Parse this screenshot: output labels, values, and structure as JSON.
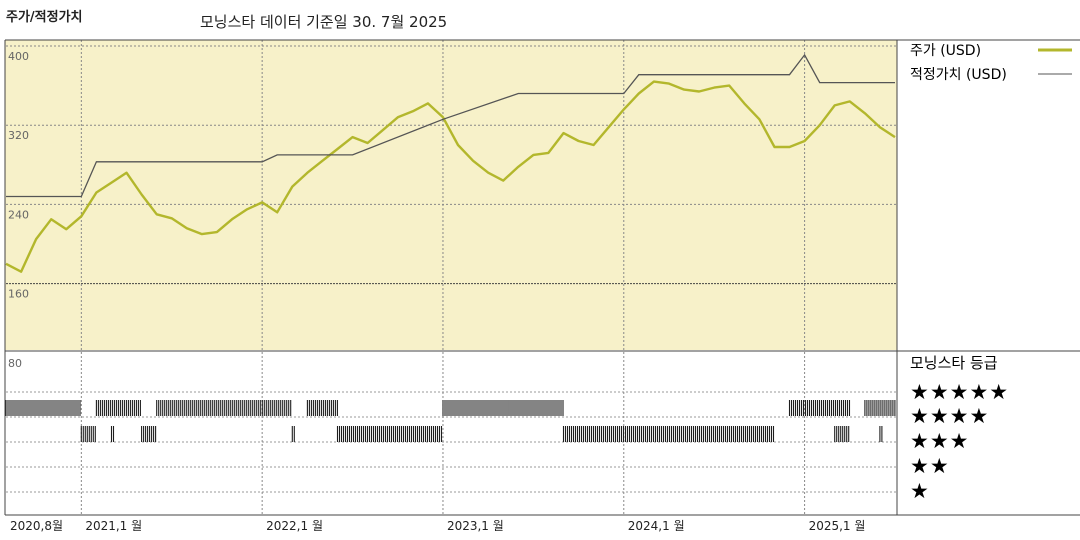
{
  "header": {
    "section_label": "주가/적정가치",
    "subtitle": "모닝스타 데이터 기준일 30. 7월 2025"
  },
  "legend": {
    "price_label": "주가 (USD)",
    "fair_value_label": "적정가치 (USD)"
  },
  "rating": {
    "title": "모닝스타 등급",
    "star_rows": [
      "★★★★★",
      "★★★★",
      "★★★",
      "★★",
      "★"
    ]
  },
  "colors": {
    "price": "#b3b72c",
    "fair_value": "#555555",
    "plot_bg": "#f7f1c9",
    "rating_bars": "#1e1e1e"
  },
  "chart_data": {
    "type": "line",
    "y_ticks": [
      "400",
      "320",
      "240",
      "160"
    ],
    "y_range": [
      80,
      400
    ],
    "lower_tick": "80",
    "x_labels": [
      "2020,8월",
      "2021,1 월",
      "2022,1 월",
      "2023,1 월",
      "2024,1 월",
      "2025,1 월"
    ],
    "x_label_dates": [
      "2020-08",
      "2021-01",
      "2022-01",
      "2023-01",
      "2024-01",
      "2025-01"
    ],
    "x_range": [
      "2020-08",
      "2025-07"
    ],
    "series": [
      {
        "name": "주가 (USD)",
        "x": [
          "2020-08",
          "2020-09",
          "2020-10",
          "2020-11",
          "2020-12",
          "2021-01",
          "2021-02",
          "2021-03",
          "2021-04",
          "2021-05",
          "2021-06",
          "2021-07",
          "2021-08",
          "2021-09",
          "2021-10",
          "2021-11",
          "2021-12",
          "2022-01",
          "2022-02",
          "2022-03",
          "2022-04",
          "2022-05",
          "2022-06",
          "2022-07",
          "2022-08",
          "2022-09",
          "2022-10",
          "2022-11",
          "2022-12",
          "2023-01",
          "2023-02",
          "2023-03",
          "2023-04",
          "2023-05",
          "2023-06",
          "2023-07",
          "2023-08",
          "2023-09",
          "2023-10",
          "2023-11",
          "2023-12",
          "2024-01",
          "2024-02",
          "2024-03",
          "2024-04",
          "2024-05",
          "2024-06",
          "2024-07",
          "2024-08",
          "2024-09",
          "2024-10",
          "2024-11",
          "2024-12",
          "2025-01",
          "2025-02",
          "2025-03",
          "2025-04",
          "2025-05",
          "2025-06",
          "2025-07"
        ],
        "y": [
          180,
          172,
          205,
          225,
          215,
          228,
          252,
          262,
          272,
          250,
          230,
          226,
          216,
          210,
          212,
          225,
          235,
          242,
          232,
          258,
          272,
          284,
          296,
          308,
          302,
          315,
          328,
          334,
          342,
          328,
          300,
          284,
          272,
          264,
          278,
          290,
          292,
          312,
          304,
          300,
          318,
          336,
          352,
          364,
          362,
          356,
          354,
          358,
          360,
          342,
          326,
          298,
          298,
          304,
          320,
          340,
          344,
          332,
          318,
          308
        ]
      },
      {
        "name": "적정가치 (USD)",
        "x": [
          "2020-08",
          "2021-01",
          "2021-02",
          "2022-01",
          "2022-02",
          "2022-07",
          "2023-01",
          "2023-06",
          "2024-01",
          "2024-02",
          "2024-12",
          "2025-01",
          "2025-02",
          "2025-07"
        ],
        "y": [
          248,
          248,
          283,
          283,
          290,
          290,
          326,
          352,
          352,
          371,
          371,
          391,
          363,
          363
        ]
      }
    ],
    "rating_bands": [
      {
        "stars": 5,
        "periods": [
          [
            "2020-08",
            "2021-01"
          ],
          [
            "2021-02",
            "2021-05"
          ],
          [
            "2021-06",
            "2022-03"
          ],
          [
            "2022-04",
            "2022-06"
          ],
          [
            "2023-01",
            "2023-09"
          ],
          [
            "2024-12",
            "2025-04"
          ],
          [
            "2025-05",
            "2025-07"
          ]
        ]
      },
      {
        "stars": 4,
        "periods": [
          [
            "2021-01",
            "2021-02"
          ],
          [
            "2021-03",
            "2021-03"
          ],
          [
            "2021-05",
            "2021-06"
          ],
          [
            "2022-03",
            "2022-03"
          ],
          [
            "2022-06",
            "2023-01"
          ],
          [
            "2023-09",
            "2024-11"
          ],
          [
            "2025-03",
            "2025-04"
          ],
          [
            "2025-06",
            "2025-06"
          ]
        ]
      }
    ]
  }
}
